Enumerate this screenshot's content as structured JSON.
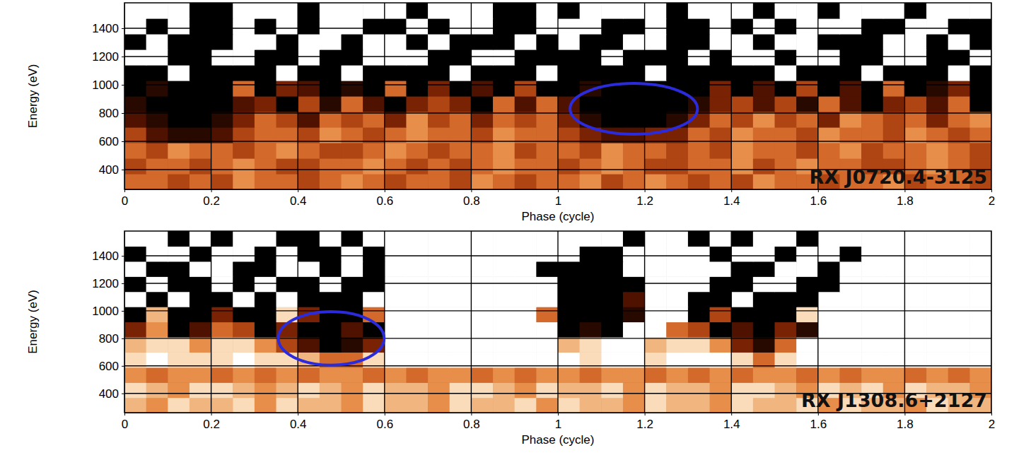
{
  "chart_data": [
    {
      "type": "heatmap",
      "title": "RX J0720.4-3125",
      "x_label": "Phase (cycle)",
      "y_label": "Energy (eV)",
      "xlim": [
        0,
        2
      ],
      "ylim": [
        260,
        1580
      ],
      "xticks": [
        0,
        0.2,
        0.4,
        0.6,
        0.8,
        1,
        1.2,
        1.4,
        1.6,
        1.8,
        2
      ],
      "yticks": [
        400,
        600,
        800,
        1000,
        1200,
        1400
      ],
      "grid": true,
      "zlim": [
        0,
        9
      ],
      "x": [
        0.025,
        0.075,
        0.125,
        0.175,
        0.225,
        0.275,
        0.325,
        0.375,
        0.425,
        0.475,
        0.525,
        0.575,
        0.625,
        0.675,
        0.725,
        0.775,
        0.825,
        0.875,
        0.925,
        0.975,
        1.025,
        1.075,
        1.125,
        1.175,
        1.225,
        1.275,
        1.325,
        1.375,
        1.425,
        1.475,
        1.525,
        1.575,
        1.625,
        1.675,
        1.725,
        1.775,
        1.825,
        1.875,
        1.925,
        1.975
      ],
      "y": [
        315,
        425,
        535,
        645,
        755,
        865,
        975,
        1085,
        1195,
        1305,
        1415,
        1525
      ],
      "cells": [
        [
          5,
          5,
          4,
          5,
          4,
          6,
          5,
          5,
          4,
          5,
          6,
          5,
          4,
          5,
          5,
          4,
          6,
          5,
          4,
          5,
          5,
          6,
          4,
          5,
          6,
          5,
          4,
          5,
          4,
          6,
          5,
          5,
          4,
          5,
          5,
          6,
          4,
          5,
          5,
          4
        ],
        [
          4,
          5,
          5,
          4,
          5,
          6,
          5,
          4,
          4,
          5,
          5,
          6,
          5,
          4,
          5,
          4,
          5,
          6,
          5,
          5,
          4,
          5,
          6,
          5,
          4,
          4,
          5,
          5,
          6,
          4,
          5,
          6,
          5,
          5,
          4,
          4,
          5,
          6,
          5,
          4
        ],
        [
          5,
          4,
          6,
          5,
          5,
          4,
          5,
          6,
          5,
          4,
          4,
          5,
          6,
          5,
          4,
          5,
          5,
          6,
          4,
          5,
          5,
          4,
          6,
          5,
          5,
          4,
          5,
          4,
          6,
          5,
          5,
          4,
          5,
          6,
          4,
          5,
          5,
          6,
          5,
          4
        ],
        [
          4,
          2,
          1,
          1,
          2,
          4,
          5,
          5,
          4,
          6,
          5,
          4,
          5,
          6,
          5,
          5,
          4,
          6,
          5,
          5,
          4,
          3,
          2,
          2,
          3,
          3,
          5,
          4,
          6,
          5,
          5,
          4,
          6,
          5,
          5,
          4,
          6,
          5,
          4,
          5
        ],
        [
          2,
          1,
          0,
          0,
          1,
          3,
          5,
          4,
          2,
          5,
          4,
          5,
          3,
          6,
          4,
          5,
          3,
          5,
          4,
          5,
          3,
          1,
          0,
          0,
          0,
          1,
          3,
          5,
          4,
          6,
          4,
          5,
          3,
          6,
          5,
          4,
          5,
          3,
          5,
          6
        ],
        [
          1,
          0,
          0,
          0,
          0,
          2,
          3,
          0,
          4,
          1,
          5,
          2,
          0,
          3,
          4,
          3,
          0,
          5,
          2,
          5,
          2,
          0,
          0,
          0,
          0,
          0,
          1,
          3,
          4,
          2,
          4,
          1,
          5,
          2,
          0,
          3,
          4,
          2,
          5,
          0
        ],
        [
          0,
          1,
          0,
          0,
          0,
          5,
          0,
          3,
          2,
          0,
          1,
          0,
          5,
          0,
          3,
          0,
          2,
          0,
          4,
          0,
          0,
          1,
          0,
          0,
          0,
          0,
          0,
          3,
          0,
          2,
          0,
          4,
          0,
          2,
          0,
          5,
          0,
          1,
          3,
          0
        ],
        [
          0,
          0,
          9,
          0,
          0,
          0,
          0,
          9,
          0,
          0,
          9,
          0,
          0,
          0,
          0,
          9,
          0,
          0,
          0,
          9,
          0,
          0,
          0,
          0,
          9,
          0,
          0,
          0,
          0,
          0,
          9,
          0,
          0,
          0,
          9,
          0,
          0,
          0,
          9,
          0
        ],
        [
          9,
          9,
          0,
          0,
          9,
          9,
          0,
          0,
          9,
          0,
          0,
          9,
          9,
          9,
          0,
          0,
          9,
          9,
          0,
          0,
          0,
          0,
          9,
          0,
          0,
          0,
          9,
          0,
          9,
          9,
          0,
          9,
          9,
          0,
          0,
          9,
          9,
          0,
          0,
          9
        ],
        [
          0,
          9,
          0,
          0,
          0,
          9,
          9,
          0,
          9,
          9,
          0,
          9,
          9,
          0,
          9,
          0,
          0,
          0,
          9,
          0,
          9,
          0,
          0,
          9,
          9,
          0,
          0,
          9,
          9,
          0,
          9,
          9,
          0,
          0,
          0,
          9,
          9,
          0,
          9,
          0
        ],
        [
          9,
          0,
          9,
          0,
          0,
          9,
          0,
          9,
          0,
          9,
          9,
          0,
          0,
          9,
          0,
          9,
          9,
          0,
          0,
          9,
          9,
          9,
          0,
          0,
          9,
          0,
          0,
          9,
          0,
          9,
          0,
          9,
          9,
          9,
          0,
          0,
          9,
          9,
          0,
          0
        ],
        [
          9,
          9,
          9,
          0,
          0,
          9,
          9,
          9,
          0,
          9,
          9,
          9,
          9,
          0,
          9,
          9,
          9,
          0,
          0,
          9,
          0,
          9,
          9,
          9,
          9,
          0,
          9,
          9,
          9,
          0,
          9,
          9,
          0,
          9,
          9,
          9,
          0,
          9,
          9,
          9
        ]
      ],
      "highlights": [
        {
          "x": 1.175,
          "y": 830,
          "rx": 0.147,
          "ry": 180,
          "color": "#2b2bdc"
        }
      ]
    },
    {
      "type": "heatmap",
      "title": "RX J1308.6+2127",
      "x_label": "Phase (cycle)",
      "y_label": "Energy (eV)",
      "xlim": [
        0,
        2
      ],
      "ylim": [
        260,
        1580
      ],
      "xticks": [
        0,
        0.2,
        0.4,
        0.6,
        0.8,
        1,
        1.2,
        1.4,
        1.6,
        1.8,
        2
      ],
      "yticks": [
        400,
        600,
        800,
        1000,
        1200,
        1400
      ],
      "grid": true,
      "zlim": [
        0,
        9
      ],
      "x": [
        0.025,
        0.075,
        0.125,
        0.175,
        0.225,
        0.275,
        0.325,
        0.375,
        0.425,
        0.475,
        0.525,
        0.575,
        0.625,
        0.675,
        0.725,
        0.775,
        0.825,
        0.875,
        0.925,
        0.975,
        1.025,
        1.075,
        1.125,
        1.175,
        1.225,
        1.275,
        1.325,
        1.375,
        1.425,
        1.475,
        1.525,
        1.575,
        1.625,
        1.675,
        1.725,
        1.775,
        1.825,
        1.875,
        1.925,
        1.975
      ],
      "y": [
        315,
        425,
        535,
        645,
        755,
        865,
        975,
        1085,
        1195,
        1305,
        1415,
        1525
      ],
      "cells": [
        [
          7,
          6,
          8,
          7,
          7,
          8,
          6,
          8,
          7,
          7,
          6,
          8,
          7,
          7,
          6,
          8,
          7,
          7,
          8,
          6,
          8,
          7,
          7,
          6,
          8,
          7,
          7,
          6,
          8,
          7,
          7,
          8,
          6,
          8,
          7,
          7,
          6,
          8,
          7,
          7
        ],
        [
          8,
          7,
          6,
          8,
          8,
          7,
          6,
          7,
          8,
          7,
          6,
          8,
          7,
          7,
          6,
          8,
          8,
          7,
          6,
          8,
          7,
          7,
          8,
          6,
          8,
          7,
          7,
          6,
          8,
          8,
          7,
          6,
          8,
          7,
          8,
          6,
          8,
          7,
          7,
          6
        ],
        [
          6,
          5,
          6,
          6,
          5,
          6,
          5,
          6,
          5,
          6,
          6,
          5,
          6,
          5,
          6,
          6,
          5,
          6,
          5,
          6,
          6,
          5,
          6,
          6,
          5,
          6,
          5,
          6,
          5,
          6,
          6,
          5,
          6,
          5,
          6,
          6,
          5,
          6,
          5,
          6
        ],
        [
          8,
          9,
          8,
          8,
          8,
          9,
          8,
          8,
          7,
          5,
          5,
          8,
          9,
          9,
          9,
          9,
          9,
          9,
          9,
          9,
          9,
          8,
          9,
          9,
          8,
          9,
          9,
          9,
          8,
          5,
          8,
          9,
          9,
          9,
          9,
          9,
          9,
          9,
          9,
          9
        ],
        [
          7,
          8,
          8,
          6,
          8,
          8,
          6,
          4,
          2,
          0,
          1,
          3,
          9,
          9,
          9,
          9,
          9,
          9,
          9,
          9,
          7,
          8,
          9,
          9,
          7,
          8,
          8,
          6,
          3,
          1,
          5,
          9,
          9,
          9,
          9,
          9,
          9,
          9,
          9,
          9
        ],
        [
          3,
          6,
          0,
          2,
          5,
          4,
          0,
          3,
          0,
          0,
          2,
          0,
          9,
          9,
          9,
          9,
          9,
          9,
          9,
          9,
          0,
          1,
          0,
          9,
          9,
          5,
          4,
          0,
          2,
          0,
          3,
          1,
          9,
          9,
          9,
          9,
          9,
          9,
          9,
          9
        ],
        [
          0,
          7,
          0,
          0,
          3,
          0,
          0,
          8,
          3,
          0,
          0,
          5,
          9,
          9,
          9,
          9,
          9,
          9,
          9,
          5,
          0,
          0,
          0,
          1,
          9,
          9,
          0,
          4,
          0,
          0,
          0,
          8,
          9,
          9,
          9,
          9,
          9,
          9,
          9,
          9
        ],
        [
          9,
          0,
          9,
          0,
          0,
          9,
          0,
          9,
          0,
          0,
          0,
          9,
          9,
          9,
          9,
          9,
          9,
          9,
          9,
          9,
          0,
          0,
          0,
          2,
          9,
          9,
          0,
          0,
          9,
          0,
          0,
          0,
          9,
          9,
          9,
          9,
          9,
          9,
          9,
          9
        ],
        [
          0,
          9,
          0,
          0,
          9,
          0,
          9,
          0,
          0,
          9,
          0,
          0,
          9,
          9,
          9,
          9,
          9,
          9,
          9,
          9,
          0,
          0,
          0,
          0,
          9,
          9,
          9,
          0,
          0,
          9,
          9,
          0,
          0,
          9,
          9,
          9,
          9,
          9,
          9,
          9
        ],
        [
          9,
          0,
          0,
          9,
          9,
          0,
          0,
          9,
          9,
          0,
          9,
          0,
          9,
          9,
          9,
          9,
          9,
          9,
          9,
          0,
          0,
          0,
          0,
          9,
          9,
          9,
          9,
          9,
          0,
          0,
          9,
          9,
          0,
          9,
          9,
          9,
          9,
          9,
          9,
          9
        ],
        [
          0,
          9,
          9,
          0,
          9,
          9,
          0,
          9,
          0,
          0,
          9,
          0,
          9,
          9,
          9,
          9,
          9,
          9,
          9,
          9,
          9,
          0,
          0,
          9,
          9,
          9,
          9,
          0,
          9,
          9,
          0,
          9,
          9,
          0,
          9,
          9,
          9,
          9,
          9,
          9
        ],
        [
          9,
          9,
          0,
          9,
          0,
          9,
          9,
          0,
          0,
          9,
          0,
          9,
          9,
          9,
          9,
          9,
          9,
          9,
          9,
          9,
          9,
          9,
          9,
          0,
          9,
          9,
          0,
          9,
          0,
          9,
          9,
          0,
          9,
          9,
          9,
          9,
          9,
          9,
          9,
          9
        ]
      ],
      "highlights": [
        {
          "x": 0.477,
          "y": 800,
          "rx": 0.122,
          "ry": 195,
          "color": "#2b2bdc"
        }
      ]
    }
  ]
}
